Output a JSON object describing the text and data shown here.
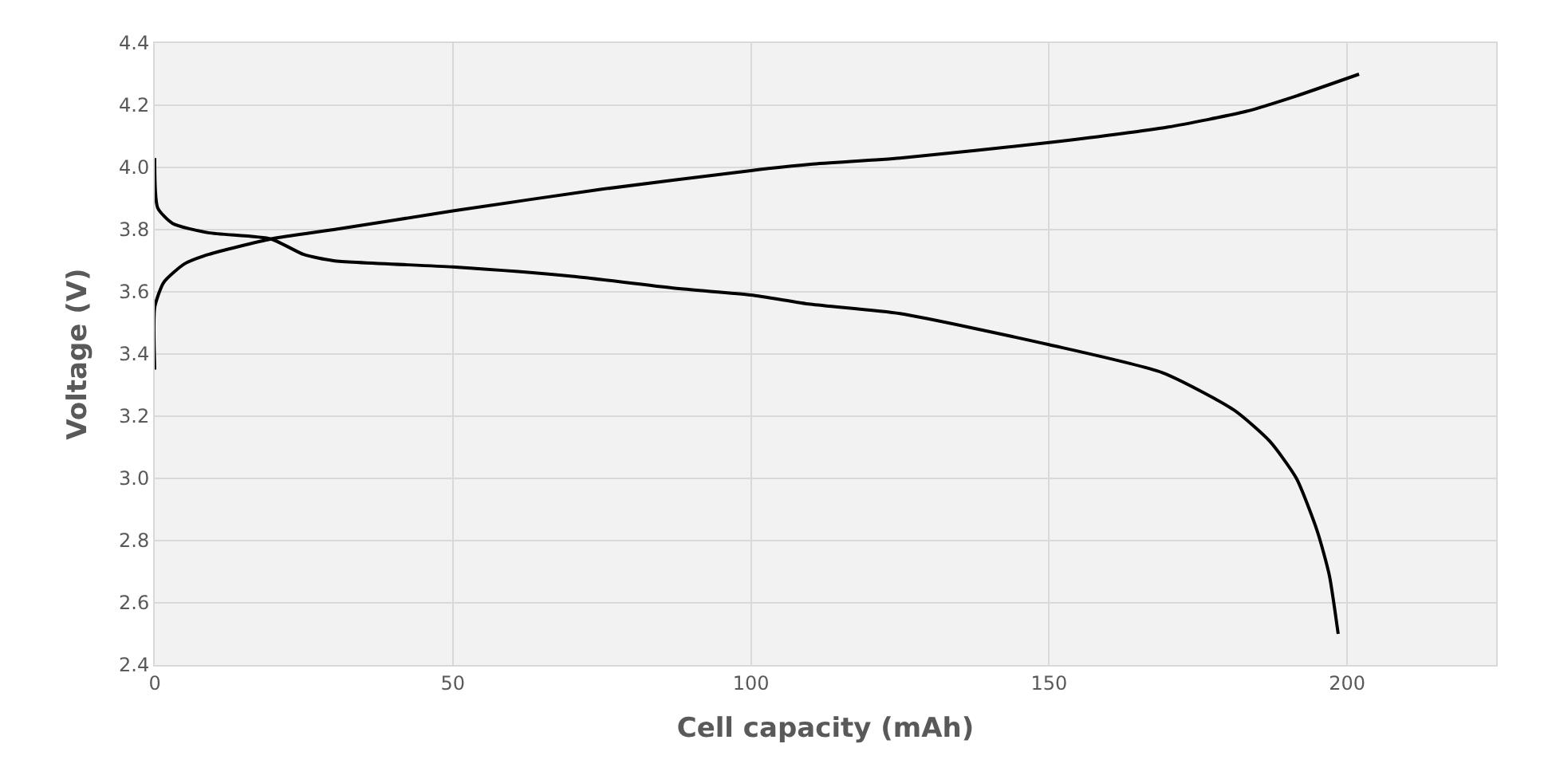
{
  "chart_data": {
    "type": "line",
    "xlabel": "Cell capacity (mAh)",
    "ylabel": "Voltage (V)",
    "xlim": [
      0,
      225
    ],
    "xticks": [
      0,
      50,
      100,
      150,
      200
    ],
    "ylim": [
      2.4,
      4.4
    ],
    "yticks": [
      {
        "value": 2.4,
        "label": "2.4"
      },
      {
        "value": 2.6,
        "label": "2.6"
      },
      {
        "value": 2.8,
        "label": "2.8"
      },
      {
        "value": 3.0,
        "label": "3.0"
      },
      {
        "value": 3.2,
        "label": "3.2"
      },
      {
        "value": 3.4,
        "label": "3.4"
      },
      {
        "value": 3.6,
        "label": "3.6"
      },
      {
        "value": 3.8,
        "label": "3.8"
      },
      {
        "value": 4.0,
        "label": "4.0"
      },
      {
        "value": 4.2,
        "label": "4.2"
      },
      {
        "value": 4.4,
        "label": "4.4"
      }
    ],
    "grid": true,
    "marker": "none",
    "line_style": "solid",
    "series": [
      {
        "color": "#000000",
        "x": [
          0,
          0,
          1.5,
          5,
          9,
          19.5,
          30,
          50,
          75,
          100,
          110,
          125,
          150,
          170,
          183,
          191.5,
          202
        ],
        "values": [
          3.35,
          3.55,
          3.63,
          3.69,
          3.72,
          3.77,
          3.8,
          3.86,
          3.93,
          3.99,
          4.01,
          4.03,
          4.08,
          4.13,
          4.18,
          4.23,
          4.3
        ]
      },
      {
        "color": "#000000",
        "x": [
          0,
          0.5,
          3,
          9,
          19.5,
          25,
          30,
          50,
          70,
          88,
          100,
          110,
          125,
          150,
          169,
          181,
          187,
          191.5,
          195,
          197,
          198.5
        ],
        "values": [
          4.03,
          3.87,
          3.82,
          3.79,
          3.77,
          3.72,
          3.7,
          3.68,
          3.65,
          3.61,
          3.59,
          3.56,
          3.53,
          3.43,
          3.34,
          3.22,
          3.12,
          3.0,
          2.83,
          2.69,
          2.5
        ]
      }
    ]
  }
}
